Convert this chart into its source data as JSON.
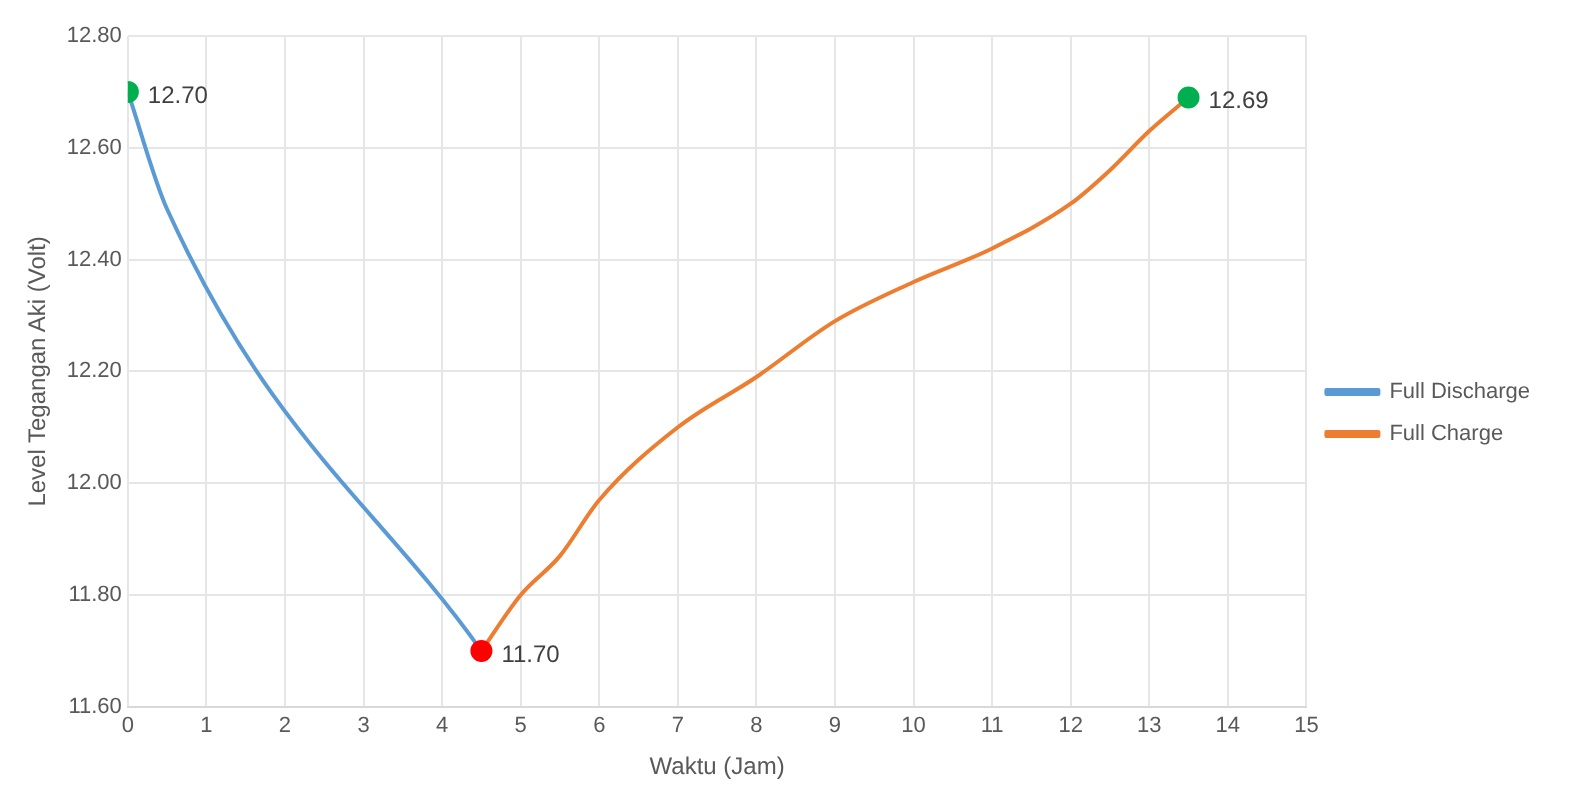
{
  "chart_data": {
    "type": "line",
    "xlabel": "Waktu (Jam)",
    "ylabel": "Level Tegangan Aki (Volt)",
    "xlim": [
      0,
      15
    ],
    "xticks": [
      0,
      1,
      2,
      3,
      4,
      5,
      6,
      7,
      8,
      9,
      10,
      11,
      12,
      13,
      14,
      15
    ],
    "ylim": [
      11.6,
      12.8
    ],
    "yticks": [
      {
        "value": 11.6,
        "label": "11.60"
      },
      {
        "value": 11.8,
        "label": "11.80"
      },
      {
        "value": 12.0,
        "label": "12.00"
      },
      {
        "value": 12.2,
        "label": "12.20"
      },
      {
        "value": 12.4,
        "label": "12.40"
      },
      {
        "value": 12.6,
        "label": "12.60"
      },
      {
        "value": 12.8,
        "label": "12.80"
      }
    ],
    "grid": true,
    "legend": "right",
    "marker": "none",
    "line_style": "solid",
    "series": [
      {
        "name": "Full Discharge",
        "color": "#5b9bd5",
        "x": [
          0,
          0.5,
          4.5
        ],
        "values": [
          12.7,
          12.49,
          11.7
        ]
      },
      {
        "name": "Full Charge",
        "color": "#ed7d31",
        "x": [
          4.5,
          5,
          5.5,
          6,
          7,
          8,
          9,
          10,
          11,
          12,
          12.5,
          13,
          13.5
        ],
        "values": [
          11.7,
          11.8,
          11.87,
          11.97,
          12.1,
          12.19,
          12.29,
          12.36,
          12.42,
          12.5,
          12.56,
          12.63,
          12.69
        ]
      },
      {
        "type": "scatter",
        "marker": "circle",
        "x": [
          0,
          4.5,
          13.5
        ],
        "values": [
          12.7,
          11.7,
          12.69
        ],
        "colors": [
          "#00b050",
          "#ff0000",
          "#00b050"
        ],
        "value_labels": [
          "12.70",
          "11.70",
          "12.69"
        ]
      }
    ]
  }
}
